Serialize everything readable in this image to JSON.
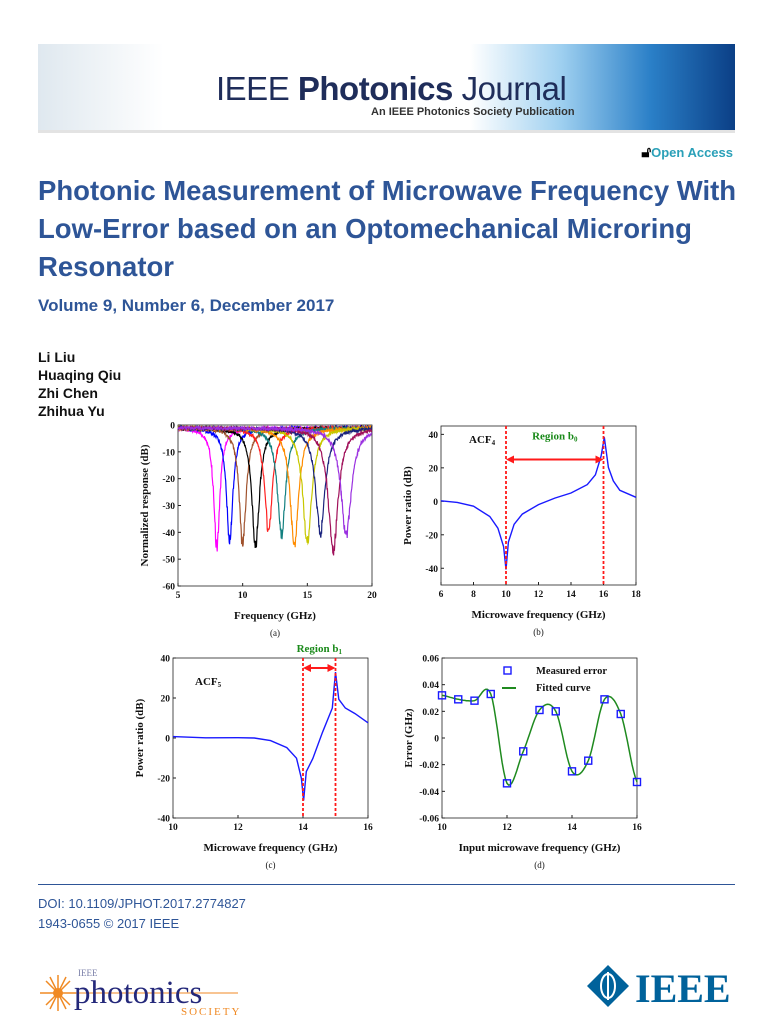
{
  "header": {
    "journal_prefix": "IEEE",
    "journal_bold": "Photonics",
    "journal_suffix": "Journal",
    "subtitle": "An IEEE Photonics Society Publication",
    "open_access": "Open Access",
    "open_access_icon": "open-lock-icon"
  },
  "article": {
    "title": "Photonic Measurement of Microwave Frequency With Low-Error based on an Optomechanical Microring Resonator",
    "volume": "Volume 9, Number 6, December 2017",
    "authors": [
      "Li Liu",
      "Huaqing Qiu",
      "Zhi Chen",
      "Zhihua Yu"
    ]
  },
  "footer": {
    "doi": "DOI: 10.1109/JPHOT.2017.2774827",
    "issn": "1943-0655 © 2017 IEEE",
    "society_logo": {
      "small": "IEEE",
      "main": "photonics",
      "sub": "SOCIETY"
    },
    "ieee_logo": "IEEE"
  },
  "colors": {
    "title_blue": "#2e5597",
    "curve_blue": "#1a1aff",
    "marker_red": "#ff1a1a",
    "region_green": "#1a8a1a",
    "fit_green": "#1f8a1f"
  },
  "chart_data": [
    {
      "type": "line",
      "panel": "(a)",
      "xlabel": "Frequency (GHz)",
      "ylabel": "Normalized response (dB)",
      "xlim": [
        5,
        20
      ],
      "ylim": [
        -60,
        0
      ],
      "xticks": [
        5,
        10,
        15,
        20
      ],
      "yticks": [
        0,
        -10,
        -20,
        -30,
        -40,
        -50,
        -60
      ],
      "grid": false,
      "series": [
        {
          "dip_ghz": 8,
          "min_db": -47,
          "color": "#ff00ff"
        },
        {
          "dip_ghz": 9,
          "min_db": -45,
          "color": "#0000ff"
        },
        {
          "dip_ghz": 10,
          "min_db": -46,
          "color": "#a0522d"
        },
        {
          "dip_ghz": 11,
          "min_db": -47,
          "color": "#000000"
        },
        {
          "dip_ghz": 12,
          "min_db": -41,
          "color": "#ff2020"
        },
        {
          "dip_ghz": 13,
          "min_db": -42,
          "color": "#138080"
        },
        {
          "dip_ghz": 14,
          "min_db": -45,
          "color": "#ff8c00"
        },
        {
          "dip_ghz": 15,
          "min_db": -45,
          "color": "#c8c800"
        },
        {
          "dip_ghz": 16,
          "min_db": -41,
          "color": "#1a237e"
        },
        {
          "dip_ghz": 17,
          "min_db": -48,
          "color": "#a0105a"
        },
        {
          "dip_ghz": 18,
          "min_db": -42,
          "color": "#9a30e0"
        }
      ]
    },
    {
      "type": "line",
      "panel": "(b)",
      "xlabel": "Microwave frequency (GHz)",
      "ylabel": "Power ratio (dB)",
      "label": "ACF",
      "label_sub": "4",
      "region": "Region b",
      "region_sub": "0",
      "xlim": [
        6,
        18
      ],
      "ylim": [
        -50,
        45
      ],
      "xticks": [
        6,
        8,
        10,
        12,
        14,
        16,
        18
      ],
      "yticks": [
        40,
        20,
        0,
        -20,
        -40
      ],
      "markers_x": [
        10,
        16
      ],
      "grid": false,
      "series": [
        {
          "x": [
            6,
            7,
            8,
            9,
            9.5,
            9.85,
            10,
            10.15,
            10.5,
            11,
            12,
            13,
            14,
            15,
            15.5,
            15.85,
            16.05,
            16.3,
            16.6,
            17,
            18
          ],
          "y": [
            0.5,
            -1,
            -3,
            -9,
            -16,
            -27,
            -41,
            -24,
            -14,
            -8,
            -2,
            2,
            5,
            10,
            16,
            27,
            38,
            20,
            12,
            7,
            2
          ]
        }
      ]
    },
    {
      "type": "line",
      "panel": "(c)",
      "xlabel": "Microwave frequency (GHz)",
      "ylabel": "Power ratio (dB)",
      "label": "ACF",
      "label_sub": "5",
      "region": "Region b",
      "region_sub": "1",
      "xlim": [
        10,
        16
      ],
      "ylim": [
        -40,
        40
      ],
      "xticks": [
        10,
        12,
        14,
        16
      ],
      "yticks": [
        40,
        20,
        0,
        -20,
        -40
      ],
      "markers_x": [
        14,
        15
      ],
      "grid": false,
      "series": [
        {
          "x": [
            10,
            11,
            12,
            12.5,
            13,
            13.5,
            13.8,
            13.95,
            14.02,
            14.1,
            14.3,
            14.6,
            14.9,
            15,
            15.1,
            15.3,
            15.6,
            16
          ],
          "y": [
            0.5,
            0.5,
            0.3,
            0,
            -1,
            -5,
            -10,
            -20,
            -31,
            -17,
            -10,
            3,
            15,
            33,
            19,
            15,
            12,
            8
          ]
        }
      ]
    },
    {
      "type": "line",
      "panel": "(d)",
      "xlabel": "Input microwave frequency (GHz)",
      "ylabel": "Error (GHz)",
      "xlim": [
        10,
        16
      ],
      "ylim": [
        -0.06,
        0.06
      ],
      "xticks": [
        10,
        12,
        14,
        16
      ],
      "yticks": [
        0.06,
        0.04,
        0.02,
        0,
        -0.02,
        -0.04,
        -0.06
      ],
      "legend": "top-right",
      "grid": false,
      "x": [
        10,
        10.5,
        11,
        11.5,
        12,
        12.5,
        13,
        13.5,
        14,
        14.5,
        15,
        15.5,
        16
      ],
      "series": [
        {
          "name": "Measured error",
          "style": "square-markers",
          "values": [
            0.032,
            0.029,
            0.028,
            0.033,
            -0.034,
            -0.01,
            0.021,
            0.02,
            -0.025,
            -0.017,
            0.029,
            0.018,
            -0.033
          ]
        },
        {
          "name": "Fitted curve",
          "style": "line",
          "values": [
            0.032,
            0.029,
            0.028,
            0.033,
            -0.034,
            -0.01,
            0.021,
            0.02,
            -0.025,
            -0.017,
            0.029,
            0.018,
            -0.033
          ]
        }
      ]
    }
  ]
}
